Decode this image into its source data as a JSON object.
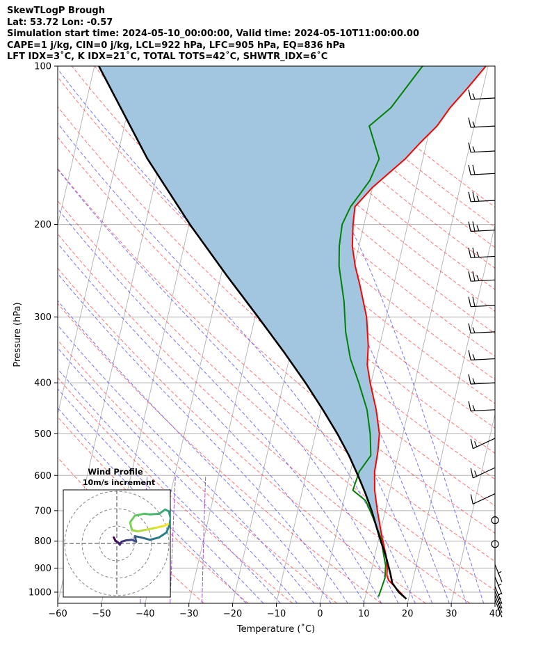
{
  "header": {
    "line1": "SkewTLogP Brough",
    "line2": "Lat: 53.72   Lon: -0.57",
    "line3": "Simulation start time: 2024-05-10_00:00:00, Valid time: 2024-05-10T11:00:00.00",
    "line4": "CAPE=1 j/kg, CIN=0 j/kg, LCL=922 hPa, LFC=905 hPa, EQ=836 hPa",
    "line5": "LFT IDX=3˚C, K IDX=21˚C, TOTAL TOTS=42˚C, SHWTR_IDX=6˚C"
  },
  "chart_data": {
    "type": "line",
    "subtype": "skewt-logp",
    "xlabel": "Temperature (˚C)",
    "ylabel": "Pressure (hPa)",
    "xlim": [
      -60,
      40
    ],
    "ylim": [
      1050,
      100
    ],
    "log_y": true,
    "grid": true,
    "x_ticks": [
      "−60",
      "−50",
      "−40",
      "−30",
      "−20",
      "−10",
      "0",
      "10",
      "20",
      "30",
      "40"
    ],
    "y_ticks": [
      100,
      200,
      300,
      400,
      500,
      600,
      700,
      800,
      900,
      1000
    ],
    "y_tick_labels": [
      "100",
      "200",
      "300",
      "400",
      "500",
      "600",
      "700",
      "800",
      "900",
      "1000"
    ],
    "colors": {
      "temperature": "#ff0000",
      "dewpoint": "#008000",
      "parcel": "#000000",
      "cape_fill": "#a3c6e0",
      "dry_adiabat": "#ff5050",
      "moist_adiabat": "#5050ff",
      "mixing_ratio": "#9933cc",
      "isotherm": "#b0b0b0"
    },
    "series": [
      {
        "role": "temperature",
        "pressure": [
          1030,
          950,
          930,
          900,
          850,
          780,
          700,
          640,
          590,
          540,
          500,
          450,
          400,
          370,
          340,
          300,
          260,
          240,
          220,
          200,
          185,
          170,
          150,
          140,
          130,
          120,
          110,
          100
        ],
        "values": [
          19.5,
          14.5,
          13.8,
          13.5,
          12.5,
          10.5,
          8.2,
          6.5,
          5.5,
          5.2,
          4.6,
          2.6,
          -0.2,
          -1.8,
          -2.6,
          -4.5,
          -7.8,
          -9.8,
          -11.5,
          -12.5,
          -13.0,
          -10.0,
          -4.0,
          -1.5,
          1.5,
          3.5,
          6.5,
          9.5
        ]
      },
      {
        "role": "dewpoint",
        "pressure": [
          1020,
          990,
          940,
          890,
          850,
          790,
          720,
          670,
          640,
          590,
          550,
          500,
          450,
          400,
          360,
          320,
          280,
          240,
          220,
          200,
          185,
          175,
          165,
          150,
          130,
          120,
          100
        ],
        "values": [
          13.0,
          13.2,
          13.5,
          13.0,
          12.0,
          10.5,
          7.5,
          5.0,
          1.5,
          2.0,
          3.8,
          2.5,
          0.5,
          -2.8,
          -6.0,
          -8.5,
          -10.5,
          -13.5,
          -14.5,
          -15.0,
          -14.0,
          -12.5,
          -11.0,
          -10.0,
          -14.0,
          -10.0,
          -5.0
        ]
      },
      {
        "role": "parcel",
        "pressure": [
          1030,
          1000,
          960,
          922,
          900,
          850,
          800,
          750,
          700,
          650,
          600,
          550,
          500,
          450,
          400,
          350,
          300,
          250,
          200,
          150,
          100
        ],
        "values": [
          19.5,
          17.4,
          15.4,
          14.5,
          13.9,
          12.4,
          10.6,
          8.8,
          6.9,
          4.6,
          1.9,
          -1.2,
          -5.0,
          -9.6,
          -15.0,
          -21.5,
          -29.3,
          -38.7,
          -49.8,
          -63.0,
          -79.0
        ]
      }
    ],
    "wind_barbs": [
      {
        "pressure": 1050,
        "speed_kt": 5
      },
      {
        "pressure": 1030,
        "speed_kt": 5
      },
      {
        "pressure": 1010,
        "speed_kt": 5
      },
      {
        "pressure": 990,
        "speed_kt": 5
      },
      {
        "pressure": 950,
        "speed_kt": 5
      },
      {
        "pressure": 900,
        "speed_kt": 5
      },
      {
        "pressure": 810,
        "speed_kt": 0
      },
      {
        "pressure": 730,
        "speed_kt": 0
      },
      {
        "pressure": 650,
        "speed_kt": 10
      },
      {
        "pressure": 580,
        "speed_kt": 15
      },
      {
        "pressure": 510,
        "speed_kt": 15
      },
      {
        "pressure": 450,
        "speed_kt": 15
      },
      {
        "pressure": 400,
        "speed_kt": 15
      },
      {
        "pressure": 360,
        "speed_kt": 15
      },
      {
        "pressure": 320,
        "speed_kt": 15
      },
      {
        "pressure": 285,
        "speed_kt": 20
      },
      {
        "pressure": 255,
        "speed_kt": 25
      },
      {
        "pressure": 230,
        "speed_kt": 25
      },
      {
        "pressure": 205,
        "speed_kt": 25
      },
      {
        "pressure": 180,
        "speed_kt": 25
      },
      {
        "pressure": 160,
        "speed_kt": 20
      },
      {
        "pressure": 145,
        "speed_kt": 15
      },
      {
        "pressure": 130,
        "speed_kt": 15
      },
      {
        "pressure": 115,
        "speed_kt": 15
      }
    ],
    "inset": {
      "title": "Wind Profile",
      "subtitle": "10m/s increment",
      "u": [
        -0.5,
        -0.2,
        0.3,
        0.5,
        0.8,
        1.5,
        2.5,
        3.2,
        3.0,
        4.0,
        5.5,
        7.0,
        8.2,
        8.7,
        8.9,
        8.6,
        8.0,
        7.0,
        5.5,
        4.5,
        3.0,
        2.2,
        2.5,
        3.5,
        5.0,
        6.5,
        7.8,
        8.5
      ],
      "v": [
        1.0,
        0.4,
        0.1,
        -0.2,
        0.3,
        0.5,
        0.6,
        0.3,
        1.2,
        1.0,
        0.6,
        1.0,
        1.8,
        3.0,
        4.2,
        5.3,
        5.6,
        4.9,
        4.8,
        4.9,
        4.6,
        3.5,
        2.2,
        2.0,
        2.3,
        2.6,
        2.9,
        3.2
      ]
    }
  }
}
